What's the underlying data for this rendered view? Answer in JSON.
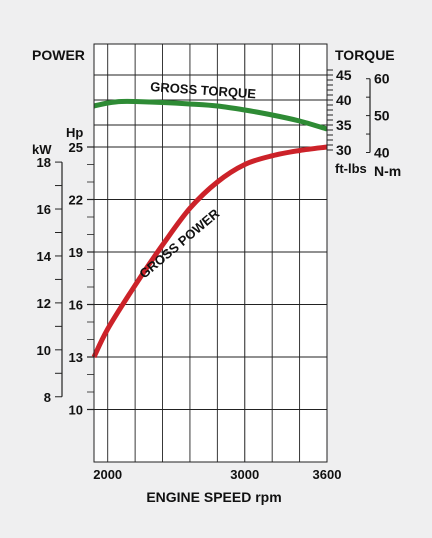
{
  "chart_data": {
    "type": "line",
    "xlabel": "ENGINE SPEED rpm",
    "x_ticks": [
      "2000",
      "3000",
      "3600"
    ],
    "xlim": [
      1900,
      3600
    ],
    "left_title": "POWER",
    "right_title": "TORQUE",
    "hp_axis": {
      "unit": "Hp",
      "ticks": [
        "25",
        "22",
        "19",
        "16",
        "13",
        "10"
      ],
      "range": [
        7,
        26
      ]
    },
    "kw_axis": {
      "unit": "kW",
      "ticks": [
        "18",
        "16",
        "14",
        "12",
        "10",
        "8"
      ]
    },
    "ftlbs_axis": {
      "unit": "ft-lbs",
      "ticks": [
        "45",
        "40",
        "35",
        "30"
      ],
      "range": [
        30,
        45
      ]
    },
    "nm_axis": {
      "unit": "N-m",
      "ticks": [
        "60",
        "50",
        "40"
      ]
    },
    "series": [
      {
        "name": "GROSS TORQUE",
        "axis": "ft-lbs",
        "color": "#2e8b35",
        "x": [
          1900,
          2000,
          2100,
          2200,
          2400,
          2600,
          2800,
          3000,
          3200,
          3400,
          3600
        ],
        "y": [
          38.8,
          39.4,
          39.7,
          39.7,
          39.5,
          39.2,
          38.8,
          38.0,
          37.0,
          35.8,
          34.2
        ]
      },
      {
        "name": "GROSS POWER",
        "axis": "Hp",
        "color": "#cc2229",
        "x": [
          1900,
          2000,
          2200,
          2400,
          2600,
          2800,
          3000,
          3200,
          3400,
          3600
        ],
        "y": [
          13.0,
          14.6,
          17.1,
          19.4,
          21.5,
          23.0,
          24.0,
          24.5,
          24.8,
          25.0
        ]
      }
    ]
  }
}
